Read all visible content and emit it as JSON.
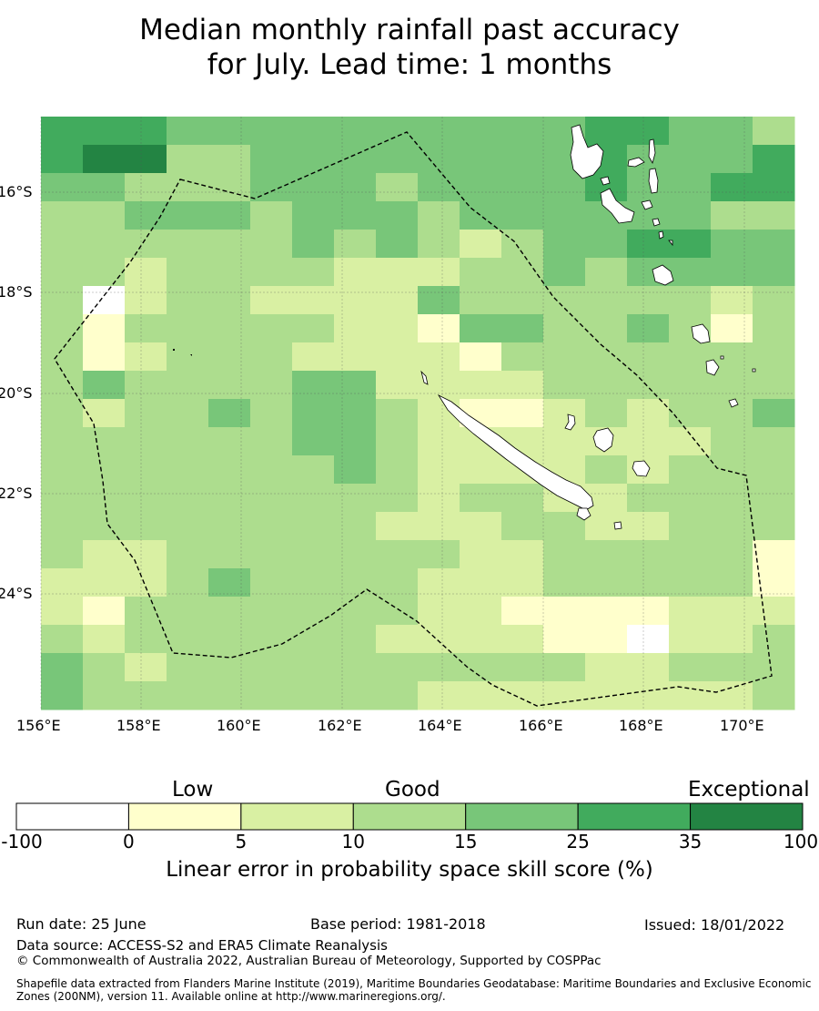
{
  "title": {
    "line1": "Median monthly rainfall past accuracy",
    "line2": "for July. Lead time: 1 months"
  },
  "map": {
    "lon_range": [
      156,
      171
    ],
    "lat_range": [
      -26.5,
      -14.7
    ],
    "lon_ticks": [
      "156°E",
      "158°E",
      "160°E",
      "162°E",
      "164°E",
      "166°E",
      "168°E",
      "170°E"
    ],
    "lat_ticks": [
      "16°S",
      "18°S",
      "20°S",
      "22°S",
      "24°S"
    ],
    "colors": {
      "c0": "#ffffff",
      "c1": "#ffffcc",
      "c2": "#d9f0a3",
      "c3": "#addd8e",
      "c4": "#78c679",
      "c5": "#41ab5d",
      "c6": "#238443"
    }
  },
  "colorbar": {
    "categories": [
      "Low",
      "Good",
      "Exceptional"
    ],
    "ticks": [
      "-100",
      "0",
      "5",
      "10",
      "15",
      "25",
      "35",
      "100"
    ],
    "colors": [
      "#ffffff",
      "#ffffcc",
      "#d9f0a3",
      "#addd8e",
      "#78c679",
      "#41ab5d",
      "#238443"
    ],
    "label": "Linear error in probability space skill score (%)"
  },
  "footer": {
    "run_date": "Run date: 25 June",
    "base_period": "Base period: 1981-2018",
    "issued": "Issued: 18/01/2022",
    "data_source": "Data source: ACCESS-S2 and ERA5 Climate Reanalysis",
    "copyright": "© Commonwealth of Australia 2022, Australian Bureau of Meteorology, Supported by COSPPac",
    "shapefile": "Shapefile data extracted from Flanders Marine Institute (2019), Maritime Boundaries Geodatabase: Maritime Boundaries and Exclusive Economic Zones (200NM), version 11. Available online at http://www.marineregions.org/."
  }
}
